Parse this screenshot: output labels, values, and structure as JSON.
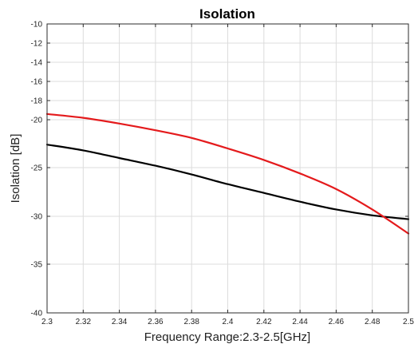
{
  "chart_data": {
    "type": "line",
    "title": "Isolation",
    "xlabel": "Frequency Range:2.3-2.5[GHz]",
    "ylabel": "Isolation [dB]",
    "xlim": [
      2.3,
      2.5
    ],
    "ylim": [
      -40,
      -10
    ],
    "grid": true,
    "x_ticks": [
      2.3,
      2.32,
      2.34,
      2.36,
      2.38,
      2.4,
      2.42,
      2.44,
      2.46,
      2.48,
      2.5
    ],
    "x_tick_labels": [
      "2.3",
      "2.32",
      "2.34",
      "2.36",
      "2.38",
      "2.4",
      "2.42",
      "2.44",
      "2.46",
      "2.48",
      "2.5"
    ],
    "y_ticks": [
      -10,
      -12,
      -14,
      -16,
      -18,
      -20,
      -25,
      -30,
      -35,
      -40
    ],
    "y_tick_labels": [
      "-10",
      "-12",
      "-14",
      "-16",
      "-18",
      "-20",
      "-25",
      "-30",
      "-35",
      "-40"
    ],
    "y_tick_map": [
      {
        "value": -10,
        "px": 30
      },
      {
        "value": -12,
        "px": 54
      },
      {
        "value": -14,
        "px": 78
      },
      {
        "value": -16,
        "px": 102
      },
      {
        "value": -18,
        "px": 126
      },
      {
        "value": -20,
        "px": 150
      },
      {
        "value": -25,
        "px": 210
      },
      {
        "value": -30,
        "px": 271
      },
      {
        "value": -35,
        "px": 331
      },
      {
        "value": -40,
        "px": 392
      }
    ],
    "x": [
      2.3,
      2.32,
      2.34,
      2.36,
      2.38,
      2.4,
      2.42,
      2.44,
      2.46,
      2.48,
      2.5
    ],
    "series": [
      {
        "color": "#000000",
        "values": [
          -22.6,
          -23.2,
          -24.0,
          -24.8,
          -25.7,
          -26.7,
          -27.6,
          -28.5,
          -29.3,
          -29.9,
          -30.3
        ]
      },
      {
        "color": "#e41a1c",
        "values": [
          -19.4,
          -19.8,
          -20.4,
          -21.1,
          -21.9,
          -23.0,
          -24.2,
          -25.6,
          -27.2,
          -29.3,
          -31.8
        ]
      }
    ]
  }
}
